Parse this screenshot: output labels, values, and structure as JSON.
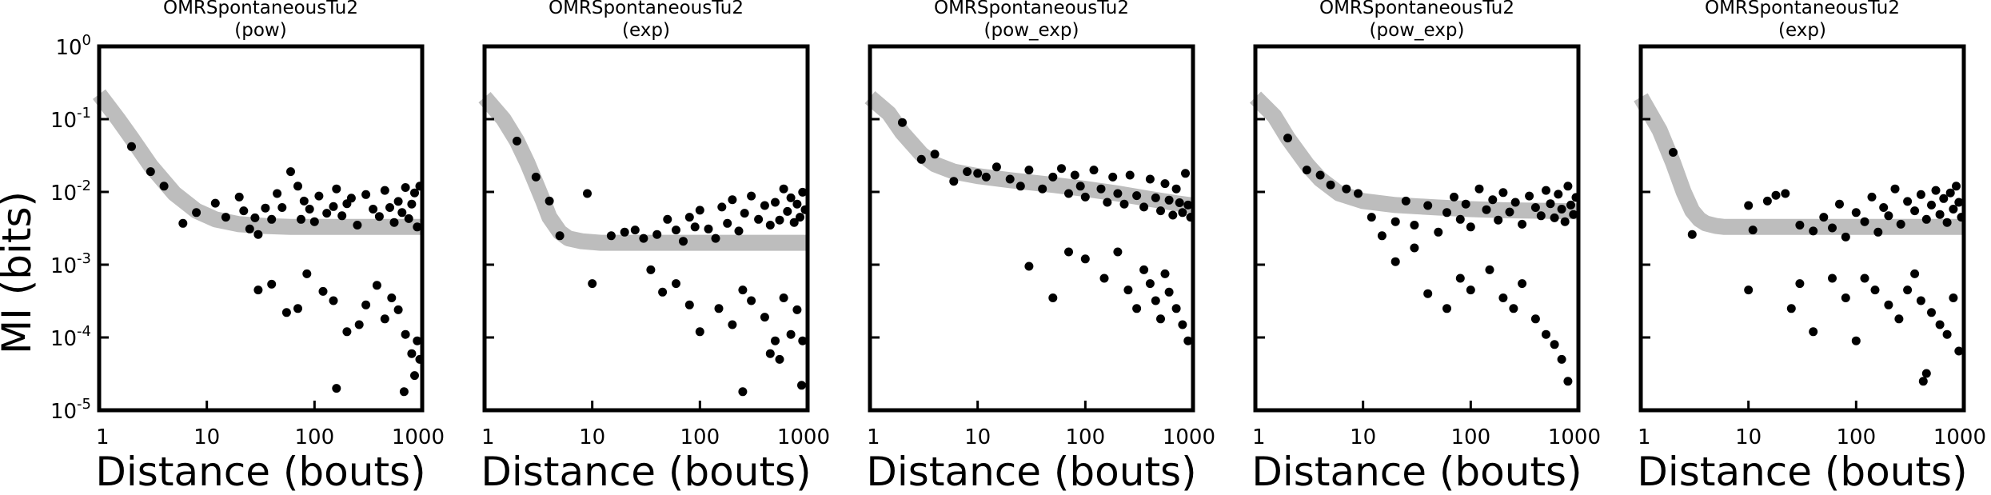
{
  "figure": {
    "ylabel": "MI (bits)",
    "ytick_base": "10",
    "ytick_exponents": [
      "0",
      "-1",
      "-2",
      "-3",
      "-4",
      "-5"
    ]
  },
  "chart_data": [
    {
      "type": "scatter",
      "title": "OMRSpontaneousTu2",
      "subtitle": "(pow)",
      "xlabel": "Distance (bouts)",
      "ylabel": "MI (bits)",
      "xscale": "log",
      "yscale": "log",
      "xlim": [
        1,
        1000
      ],
      "ylim": [
        1e-05,
        1
      ],
      "xticks": [
        "1",
        "10",
        "100",
        "1000"
      ],
      "grid": false,
      "series": [
        {
          "kind": "points",
          "x": [
            2,
            3,
            4,
            6,
            8,
            12,
            15,
            20,
            22,
            25,
            28,
            30,
            35,
            40,
            45,
            50,
            60,
            70,
            75,
            80,
            90,
            100,
            110,
            130,
            150,
            160,
            180,
            200,
            220,
            250,
            300,
            350,
            400,
            450,
            500,
            550,
            600,
            650,
            700,
            750,
            800,
            850,
            900,
            950,
            30,
            40,
            55,
            70,
            85,
            120,
            150,
            200,
            260,
            300,
            380,
            450,
            520,
            600,
            700,
            800,
            900,
            160,
            680,
            850,
            950
          ],
          "y": [
            0.042,
            0.019,
            0.012,
            0.0037,
            0.0052,
            0.007,
            0.0045,
            0.0085,
            0.0055,
            0.0031,
            0.0044,
            0.0026,
            0.006,
            0.0042,
            0.0095,
            0.0061,
            0.019,
            0.012,
            0.0042,
            0.0075,
            0.0058,
            0.0039,
            0.0088,
            0.0051,
            0.0063,
            0.011,
            0.0047,
            0.0069,
            0.0082,
            0.0035,
            0.0092,
            0.0058,
            0.0046,
            0.0105,
            0.0061,
            0.0038,
            0.0074,
            0.0052,
            0.0115,
            0.0043,
            0.0068,
            0.0097,
            0.0033,
            0.012,
            0.00045,
            0.00054,
            0.00022,
            0.00025,
            0.00075,
            0.00043,
            0.00032,
            0.00012,
            0.00015,
            0.00028,
            0.00052,
            0.00018,
            0.00035,
            0.00024,
            0.00011,
            6e-05,
            9e-05,
            2e-05,
            1.8e-05,
            3e-05,
            5e-05
          ]
        },
        {
          "kind": "fit",
          "x": [
            1,
            1.5,
            2,
            3,
            5,
            8,
            12,
            20,
            35,
            60,
            100,
            200,
            400,
            700,
            1000
          ],
          "y": [
            0.22,
            0.1,
            0.055,
            0.023,
            0.0095,
            0.0055,
            0.0042,
            0.0036,
            0.0034,
            0.0033,
            0.0033,
            0.0033,
            0.0033,
            0.0033,
            0.0033
          ]
        }
      ]
    },
    {
      "type": "scatter",
      "title": "OMRSpontaneousTu2",
      "subtitle": "(exp)",
      "xlabel": "Distance (bouts)",
      "ylabel": "MI (bits)",
      "xscale": "log",
      "yscale": "log",
      "xlim": [
        1,
        1000
      ],
      "ylim": [
        1e-05,
        1
      ],
      "xticks": [
        "1",
        "10",
        "100",
        "1000"
      ],
      "grid": false,
      "series": [
        {
          "kind": "points",
          "x": [
            2,
            3,
            4,
            5,
            9,
            15,
            20,
            25,
            30,
            40,
            50,
            60,
            70,
            80,
            90,
            100,
            120,
            140,
            160,
            180,
            200,
            230,
            260,
            300,
            350,
            400,
            450,
            500,
            550,
            600,
            650,
            700,
            750,
            800,
            850,
            900,
            950,
            10,
            35,
            45,
            60,
            80,
            100,
            150,
            200,
            250,
            300,
            400,
            500,
            600,
            700,
            800,
            900,
            250,
            880,
            450,
            550
          ],
          "y": [
            0.05,
            0.016,
            0.0075,
            0.0025,
            0.0095,
            0.0025,
            0.0028,
            0.003,
            0.0023,
            0.0026,
            0.0042,
            0.003,
            0.0021,
            0.0045,
            0.0033,
            0.0056,
            0.0031,
            0.0023,
            0.0062,
            0.0037,
            0.0078,
            0.0029,
            0.0051,
            0.0088,
            0.0042,
            0.0065,
            0.0035,
            0.0072,
            0.0041,
            0.011,
            0.0054,
            0.0083,
            0.0038,
            0.0068,
            0.0045,
            0.0099,
            0.0057,
            0.00055,
            0.00085,
            0.00042,
            0.00055,
            0.00028,
            0.00012,
            0.00025,
            0.00015,
            0.00045,
            0.00032,
            0.00019,
            9e-05,
            0.00035,
            0.00011,
            0.00024,
            9e-05,
            1.8e-05,
            2.2e-05,
            6e-05,
            5e-05
          ]
        },
        {
          "kind": "fit",
          "x": [
            1,
            1.5,
            2,
            2.5,
            3,
            3.5,
            4,
            5,
            6,
            8,
            12,
            20,
            50,
            100,
            300,
            1000
          ],
          "y": [
            0.2,
            0.1,
            0.05,
            0.025,
            0.013,
            0.0075,
            0.0045,
            0.0028,
            0.0023,
            0.0021,
            0.002,
            0.002,
            0.002,
            0.002,
            0.002,
            0.002
          ]
        }
      ]
    },
    {
      "type": "scatter",
      "title": "OMRSpontaneousTu2",
      "subtitle": "(pow_exp)",
      "xlabel": "Distance (bouts)",
      "ylabel": "MI (bits)",
      "xscale": "log",
      "yscale": "log",
      "xlim": [
        1,
        1000
      ],
      "ylim": [
        1e-05,
        1
      ],
      "xticks": [
        "1",
        "10",
        "100",
        "1000"
      ],
      "grid": false,
      "series": [
        {
          "kind": "points",
          "x": [
            2,
            3,
            4,
            6,
            8,
            10,
            12,
            15,
            20,
            25,
            30,
            40,
            50,
            60,
            70,
            80,
            90,
            100,
            120,
            140,
            160,
            180,
            200,
            230,
            260,
            300,
            350,
            400,
            450,
            500,
            550,
            600,
            650,
            700,
            750,
            800,
            850,
            900,
            950,
            30,
            50,
            70,
            100,
            150,
            200,
            250,
            300,
            350,
            400,
            450,
            500,
            550,
            600,
            700,
            800,
            900
          ],
          "y": [
            0.09,
            0.028,
            0.033,
            0.014,
            0.019,
            0.018,
            0.016,
            0.022,
            0.015,
            0.012,
            0.02,
            0.011,
            0.016,
            0.021,
            0.0095,
            0.017,
            0.012,
            0.0085,
            0.02,
            0.011,
            0.0072,
            0.016,
            0.0095,
            0.0068,
            0.017,
            0.0089,
            0.0062,
            0.015,
            0.0083,
            0.0055,
            0.013,
            0.0077,
            0.0048,
            0.011,
            0.0071,
            0.0052,
            0.018,
            0.0066,
            0.0045,
            0.00095,
            0.00035,
            0.0015,
            0.0012,
            0.00065,
            0.0015,
            0.00045,
            0.00025,
            0.00085,
            0.00055,
            0.00032,
            0.00018,
            0.00075,
            0.00042,
            0.00025,
            0.00015,
            9e-05
          ]
        },
        {
          "kind": "fit",
          "x": [
            1,
            1.5,
            2,
            3,
            4,
            6,
            10,
            20,
            50,
            100,
            200,
            400,
            700,
            1000
          ],
          "y": [
            0.2,
            0.12,
            0.065,
            0.033,
            0.024,
            0.019,
            0.0165,
            0.0145,
            0.0125,
            0.011,
            0.0095,
            0.008,
            0.007,
            0.0065
          ]
        }
      ]
    },
    {
      "type": "scatter",
      "title": "OMRSpontaneousTu2",
      "subtitle": "(pow_exp)",
      "xlabel": "Distance (bouts)",
      "ylabel": "MI (bits)",
      "xscale": "log",
      "yscale": "log",
      "xlim": [
        1,
        1000
      ],
      "ylim": [
        1e-05,
        1
      ],
      "xticks": [
        "1",
        "10",
        "100",
        "1000"
      ],
      "grid": false,
      "series": [
        {
          "kind": "points",
          "x": [
            2,
            3,
            4,
            5,
            7,
            9,
            12,
            15,
            20,
            25,
            30,
            40,
            50,
            60,
            70,
            80,
            90,
            100,
            120,
            140,
            160,
            180,
            200,
            230,
            260,
            300,
            350,
            400,
            450,
            500,
            550,
            600,
            650,
            700,
            750,
            800,
            850,
            900,
            950,
            20,
            30,
            40,
            60,
            80,
            100,
            150,
            200,
            250,
            300,
            400,
            500,
            600,
            700,
            800
          ],
          "y": [
            0.055,
            0.02,
            0.017,
            0.0125,
            0.011,
            0.0095,
            0.0045,
            0.0025,
            0.0039,
            0.0075,
            0.0035,
            0.0065,
            0.0028,
            0.0052,
            0.0085,
            0.0042,
            0.0068,
            0.0033,
            0.011,
            0.0057,
            0.0078,
            0.0041,
            0.0098,
            0.0053,
            0.0072,
            0.0036,
            0.0088,
            0.0061,
            0.0047,
            0.0105,
            0.0069,
            0.0044,
            0.0093,
            0.0058,
            0.0039,
            0.012,
            0.0066,
            0.0049,
            0.0084,
            0.0011,
            0.0017,
            0.0004,
            0.00025,
            0.00065,
            0.00045,
            0.00085,
            0.00035,
            0.00025,
            0.00055,
            0.00018,
            0.00011,
            8e-05,
            5e-05,
            2.5e-05
          ]
        },
        {
          "kind": "fit",
          "x": [
            1,
            1.5,
            2,
            3,
            4,
            6,
            10,
            20,
            50,
            100,
            200,
            500,
            1000
          ],
          "y": [
            0.2,
            0.11,
            0.055,
            0.024,
            0.015,
            0.0095,
            0.0075,
            0.0066,
            0.0061,
            0.0058,
            0.0056,
            0.0055,
            0.0054
          ]
        }
      ]
    },
    {
      "type": "scatter",
      "title": "OMRSpontaneousTu2",
      "subtitle": "(exp)",
      "xlabel": "Distance (bouts)",
      "ylabel": "MI (bits)",
      "xscale": "log",
      "yscale": "log",
      "xlim": [
        1,
        1000
      ],
      "ylim": [
        1e-05,
        1
      ],
      "xticks": [
        "1",
        "10",
        "100",
        "1000"
      ],
      "grid": false,
      "series": [
        {
          "kind": "points",
          "x": [
            2,
            3,
            10,
            11,
            15,
            18,
            22,
            30,
            40,
            50,
            60,
            70,
            80,
            100,
            120,
            140,
            160,
            180,
            200,
            230,
            260,
            300,
            350,
            400,
            450,
            500,
            550,
            600,
            650,
            700,
            750,
            800,
            850,
            900,
            950,
            10,
            25,
            30,
            40,
            60,
            80,
            100,
            120,
            150,
            200,
            250,
            300,
            350,
            400,
            500,
            600,
            700,
            800,
            900,
            450,
            420
          ],
          "y": [
            0.035,
            0.0026,
            0.0065,
            0.003,
            0.0075,
            0.009,
            0.0095,
            0.0035,
            0.0029,
            0.0045,
            0.0032,
            0.0068,
            0.0024,
            0.0052,
            0.0039,
            0.0085,
            0.0028,
            0.0061,
            0.0047,
            0.011,
            0.0036,
            0.0074,
            0.0055,
            0.0092,
            0.0042,
            0.0066,
            0.0105,
            0.0049,
            0.0081,
            0.0038,
            0.0097,
            0.0058,
            0.012,
            0.0072,
            0.0045,
            0.00045,
            0.00025,
            0.00055,
            0.00012,
            0.00065,
            0.00035,
            9e-05,
            0.00065,
            0.00045,
            0.00028,
            0.00018,
            0.00045,
            0.00075,
            0.00032,
            0.00022,
            0.00015,
            0.00011,
            0.00035,
            6.5e-05,
            3.2e-05,
            2.5e-05
          ]
        },
        {
          "kind": "fit",
          "x": [
            1,
            1.5,
            2,
            2.5,
            3,
            3.5,
            4,
            5,
            6,
            8,
            12,
            20,
            50,
            100,
            300,
            1000
          ],
          "y": [
            0.2,
            0.07,
            0.025,
            0.01,
            0.0055,
            0.0042,
            0.0037,
            0.0034,
            0.0033,
            0.0033,
            0.0033,
            0.0033,
            0.0033,
            0.0033,
            0.0033,
            0.0033
          ]
        }
      ]
    }
  ]
}
